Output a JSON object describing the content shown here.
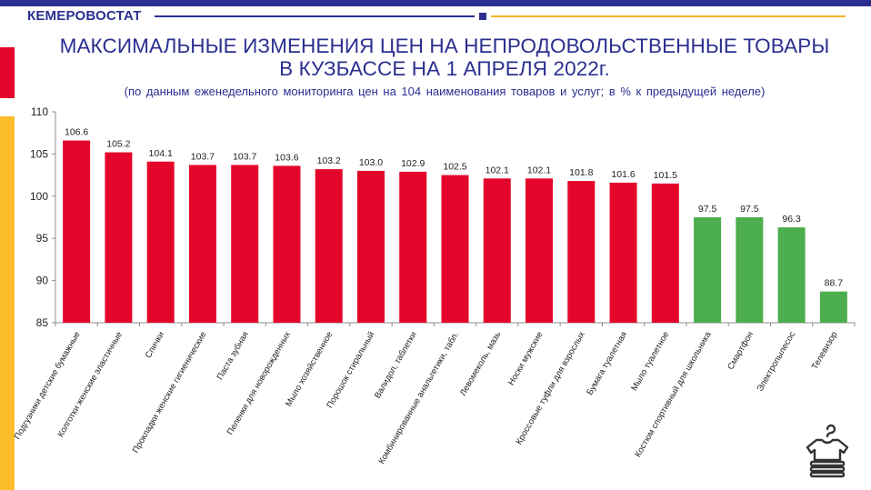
{
  "header": {
    "brand": "КЕМЕРОВОСТАТ",
    "title_line1": "МАКСИМАЛЬНЫЕ ИЗМЕНЕНИЯ ЦЕН НА НЕПРОДОВОЛЬСТВЕННЫЕ ТОВАРЫ",
    "title_line2": "В КУЗБАССЕ  НА 1 АПРЕЛЯ 2022г.",
    "subtitle": "(по данным  еженедельного мониторинга  цен на 104 наименования  товаров и услуг; в % к предыдущей  неделе)"
  },
  "colors": {
    "brand_blue": "#2b2f8f",
    "accent_red": "#e4062a",
    "accent_yellow": "#fbbd2b",
    "increase_bar": "#e4062a",
    "decrease_bar": "#4cae4c"
  },
  "icon": "clothes-rack-icon",
  "chart_data": {
    "type": "bar",
    "title": "",
    "xlabel": "",
    "ylabel": "",
    "ylim": [
      85,
      110
    ],
    "yticks": [
      85,
      90,
      95,
      100,
      105,
      110
    ],
    "grid": false,
    "legend": "none",
    "categories": [
      "Подгузники детские бумажные",
      "Колготки женские эластичные",
      "Спички",
      "Прокладки женские гигиенические",
      "Паста зубная",
      "Пеленки для новорожденных",
      "Мыло хозяйственное",
      "Порошок стиральный",
      "Валидол, таблетки",
      "Комбинированные анальгетики, табл.",
      "Левомеколь, мазь",
      "Носки мужские",
      "Кроссовые туфли для взрослых",
      "Бумага туалетная",
      "Мыло туалетное",
      "Костюм спортивный для школьника",
      "Смартфон",
      "Электропылесос",
      "Телевизор"
    ],
    "values": [
      106.6,
      105.2,
      104.1,
      103.7,
      103.7,
      103.6,
      103.2,
      103.0,
      102.9,
      102.5,
      102.1,
      102.1,
      101.8,
      101.6,
      101.5,
      97.5,
      97.5,
      96.3,
      88.7
    ],
    "value_labels": [
      "106.6",
      "105.2",
      "104.1",
      "103.7",
      "103.7",
      "103.6",
      "103.2",
      "103.0",
      "102.9",
      "102.5",
      "102.1",
      "102.1",
      "101.8",
      "101.6",
      "101.5",
      "97.5",
      "97.5",
      "96.3",
      "88.7"
    ]
  }
}
